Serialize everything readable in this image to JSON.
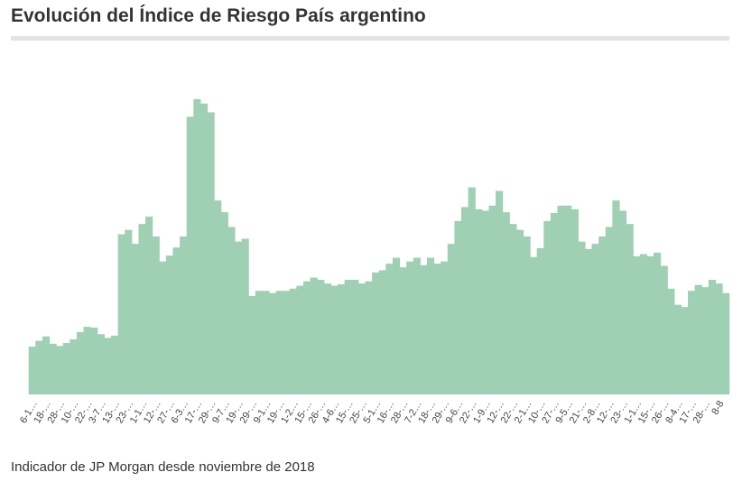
{
  "chart_data": {
    "type": "bar",
    "title": "Evolución del Índice de Riesgo País argentino",
    "caption": "Indicador de JP Morgan desde noviembre de 2018",
    "color": "#9fd0b3",
    "ylim": [
      0,
      4300
    ],
    "categories": [
      "6-1…",
      null,
      "18-…",
      null,
      "28-…",
      null,
      "10-…",
      null,
      "22-…",
      null,
      "3-7…",
      null,
      "13-…",
      null,
      "23-…",
      null,
      "1-1…",
      null,
      "12-…",
      null,
      "27-…",
      null,
      "6-3…",
      null,
      "17-…",
      null,
      "29-…",
      null,
      "9-7…",
      null,
      "19-…",
      null,
      "29-…",
      null,
      "9-1…",
      null,
      "19-…",
      null,
      "1-2…",
      null,
      "15-…",
      null,
      "26-…",
      null,
      "4-6…",
      null,
      "15-…",
      null,
      "25-…",
      null,
      "5-1…",
      null,
      "16-…",
      null,
      "28-…",
      null,
      "7-2…",
      null,
      "18-…",
      null,
      "29-…",
      null,
      "9-6…",
      null,
      "22-…",
      null,
      "1-9…",
      null,
      "12-…",
      null,
      "22-…",
      null,
      "2-1…",
      null,
      "10-…",
      null,
      "27-…",
      null,
      "9-5…",
      null,
      "21-…",
      null,
      "2-8…",
      null,
      "12-…",
      null,
      "23-…",
      null,
      "1-1…",
      null,
      "15-…",
      null,
      "26-…",
      null,
      "8-4…",
      null,
      "17-…",
      null,
      "28-…",
      null,
      "8-8",
      null
    ],
    "values": [
      650,
      730,
      790,
      690,
      660,
      700,
      750,
      850,
      920,
      910,
      820,
      770,
      800,
      2180,
      2240,
      2050,
      2320,
      2420,
      2150,
      1810,
      1890,
      2000,
      2150,
      3780,
      4020,
      3960,
      3840,
      2640,
      2480,
      2280,
      2080,
      2120,
      1340,
      1410,
      1410,
      1380,
      1410,
      1410,
      1440,
      1480,
      1540,
      1590,
      1560,
      1510,
      1480,
      1500,
      1560,
      1560,
      1510,
      1540,
      1660,
      1690,
      1780,
      1860,
      1730,
      1810,
      1860,
      1760,
      1860,
      1780,
      1810,
      2050,
      2360,
      2550,
      2820,
      2520,
      2500,
      2570,
      2770,
      2480,
      2320,
      2240,
      2150,
      1870,
      1990,
      2360,
      2470,
      2570,
      2570,
      2520,
      2080,
      1980,
      2050,
      2150,
      2280,
      2640,
      2500,
      2320,
      1880,
      1910,
      1880,
      1930,
      1750,
      1440,
      1220,
      1190,
      1410,
      1490,
      1460,
      1560,
      1510,
      1380
    ]
  }
}
